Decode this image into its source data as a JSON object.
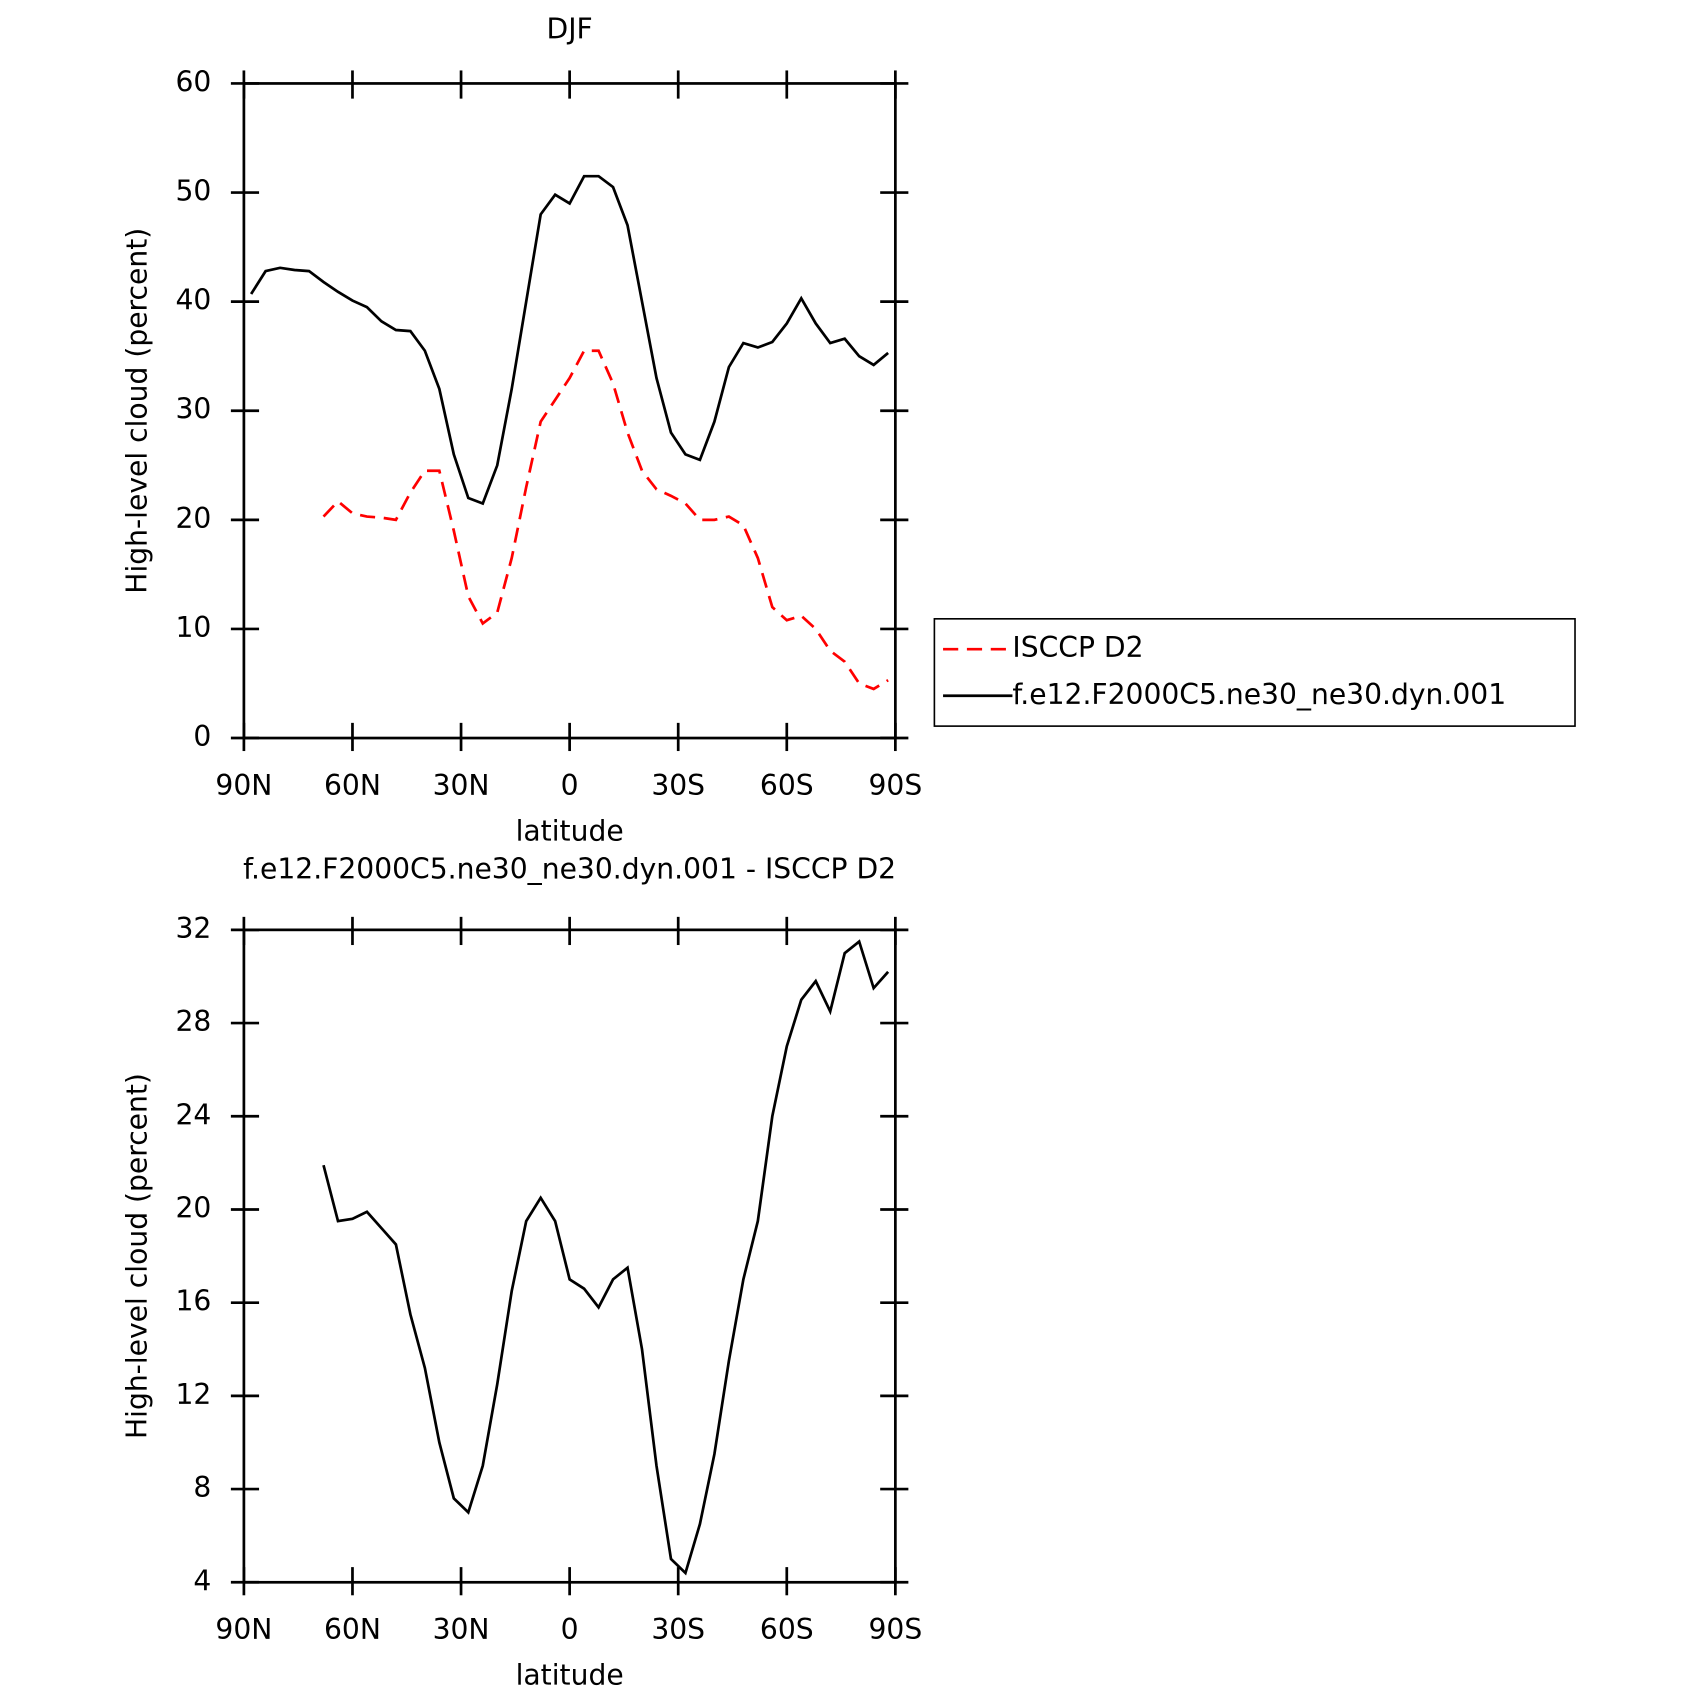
{
  "chart_data": [
    {
      "type": "line",
      "title": "DJF",
      "xlabel": "latitude",
      "ylabel": "High-level cloud (percent)",
      "xlim": [
        90,
        -90
      ],
      "xticks": [
        {
          "value": 90,
          "label": "90N"
        },
        {
          "value": 60,
          "label": "60N"
        },
        {
          "value": 30,
          "label": "30N"
        },
        0,
        {
          "value": -30,
          "label": "30S"
        },
        {
          "value": -60,
          "label": "60S"
        },
        {
          "value": -90,
          "label": "90S"
        }
      ],
      "ylim": [
        0,
        60
      ],
      "yticks": [
        0,
        10,
        20,
        30,
        40,
        50,
        60
      ],
      "x": [
        88,
        84,
        80,
        76,
        72,
        68,
        64,
        60,
        56,
        52,
        48,
        44,
        40,
        36,
        32,
        28,
        24,
        20,
        16,
        12,
        8,
        4,
        0,
        -4,
        -8,
        -12,
        -16,
        -20,
        -24,
        -28,
        -32,
        -36,
        -40,
        -44,
        -48,
        -52,
        -56,
        -60,
        -64,
        -68,
        -72,
        -76,
        -80,
        -84,
        -88
      ],
      "series": [
        {
          "name": "ISCCP D2",
          "color": "#ff0000",
          "dash": true,
          "values": [
            null,
            null,
            null,
            null,
            null,
            20.3,
            21.7,
            20.6,
            20.3,
            20.2,
            20.0,
            22.5,
            24.5,
            24.5,
            19,
            13,
            10.5,
            11.5,
            16.5,
            23,
            29,
            31,
            33,
            35.5,
            35.5,
            32.5,
            28,
            24.5,
            22.8,
            22.2,
            21.5,
            20,
            20,
            20.3,
            19.5,
            16.5,
            12,
            10.8,
            11.2,
            10,
            8,
            7,
            5,
            4.5,
            5.3
          ]
        },
        {
          "name": "f.e12.F2000C5.ne30_ne30.dyn.001",
          "color": "#000000",
          "dash": false,
          "values": [
            40.7,
            42.8,
            43.1,
            42.9,
            42.8,
            41.8,
            40.9,
            40.1,
            39.5,
            38.2,
            37.4,
            37.3,
            35.5,
            32.0,
            26.0,
            22.0,
            21.5,
            25,
            32,
            40,
            48,
            49.8,
            49.0,
            51.5,
            51.5,
            50.5,
            47,
            40,
            33,
            28,
            26,
            25.5,
            29,
            34,
            36.2,
            35.8,
            36.3,
            38,
            40.3,
            38,
            36.2,
            36.6,
            35,
            34.2,
            35.3
          ]
        }
      ]
    },
    {
      "type": "line",
      "title": "f.e12.F2000C5.ne30_ne30.dyn.001 - ISCCP D2",
      "xlabel": "latitude",
      "ylabel": "High-level cloud (percent)",
      "xlim": [
        90,
        -90
      ],
      "xticks": [
        {
          "value": 90,
          "label": "90N"
        },
        {
          "value": 60,
          "label": "60N"
        },
        {
          "value": 30,
          "label": "30N"
        },
        0,
        {
          "value": -30,
          "label": "30S"
        },
        {
          "value": -60,
          "label": "60S"
        },
        {
          "value": -90,
          "label": "90S"
        }
      ],
      "ylim": [
        4,
        32
      ],
      "yticks": [
        4,
        8,
        12,
        16,
        20,
        24,
        28,
        32
      ],
      "x": [
        88,
        84,
        80,
        76,
        72,
        68,
        64,
        60,
        56,
        52,
        48,
        44,
        40,
        36,
        32,
        28,
        24,
        20,
        16,
        12,
        8,
        4,
        0,
        -4,
        -8,
        -12,
        -16,
        -20,
        -24,
        -28,
        -32,
        -36,
        -40,
        -44,
        -48,
        -52,
        -56,
        -60,
        -64,
        -68,
        -72,
        -76,
        -80,
        -84,
        -88
      ],
      "series": [
        {
          "color": "#000000",
          "dash": false,
          "values": [
            null,
            null,
            null,
            null,
            null,
            21.9,
            19.5,
            19.6,
            19.9,
            19.2,
            18.5,
            15.5,
            13.2,
            10,
            7.6,
            7.0,
            9,
            12.5,
            16.5,
            19.5,
            20.5,
            19.5,
            17.0,
            16.6,
            15.8,
            17,
            17.5,
            14,
            9,
            5,
            4.4,
            6.5,
            9.5,
            13.5,
            17,
            19.5,
            24,
            27,
            29,
            29.8,
            28.5,
            31,
            31.5,
            29.5,
            30.2
          ]
        }
      ]
    }
  ]
}
